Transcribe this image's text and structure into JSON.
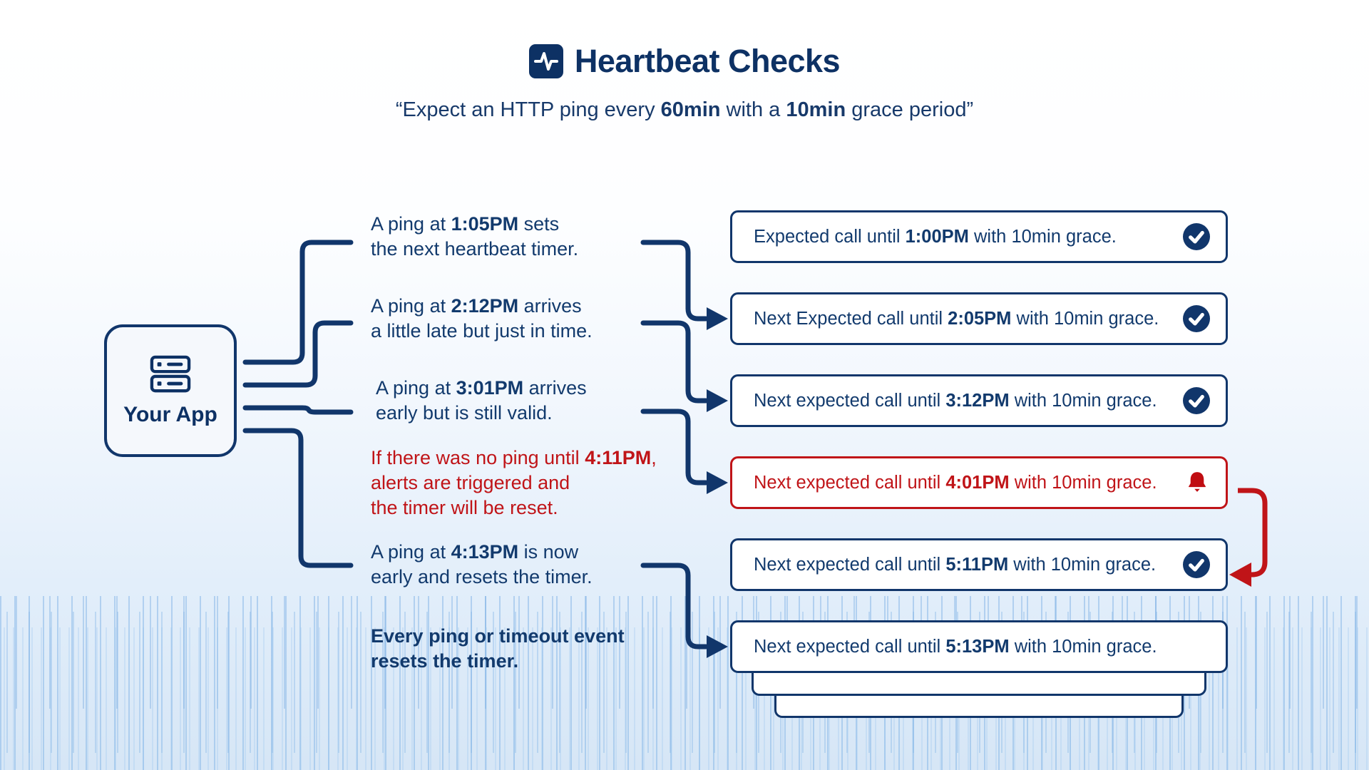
{
  "header": {
    "icon": "pulse-icon",
    "title": "Heartbeat Checks",
    "subtitle_segments": [
      {
        "t": "“Expect an HTTP ping every "
      },
      {
        "t": "60min",
        "b": true
      },
      {
        "t": " with a "
      },
      {
        "t": "10min",
        "b": true
      },
      {
        "t": " grace period”"
      }
    ]
  },
  "app_node": {
    "icon": "server-icon",
    "label": "Your App"
  },
  "left_notes": [
    {
      "style": "normal",
      "segments": [
        {
          "t": "A ping at "
        },
        {
          "t": "1:05PM",
          "b": true
        },
        {
          "t": " sets"
        },
        {
          "br": true
        },
        {
          "t": "the next heartbeat timer."
        }
      ]
    },
    {
      "style": "normal",
      "segments": [
        {
          "t": "A ping at "
        },
        {
          "t": "2:12PM",
          "b": true
        },
        {
          "t": " arrives"
        },
        {
          "br": true
        },
        {
          "t": "a little late but just in time."
        }
      ]
    },
    {
      "style": "normal",
      "segments": [
        {
          "t": "A ping at "
        },
        {
          "t": "3:01PM",
          "b": true
        },
        {
          "t": " arrives"
        },
        {
          "br": true
        },
        {
          "t": "early but is still valid."
        }
      ]
    },
    {
      "style": "alert",
      "segments": [
        {
          "t": "If there was no ping until "
        },
        {
          "t": "4:11PM",
          "b": true
        },
        {
          "t": ","
        },
        {
          "br": true
        },
        {
          "t": "alerts are triggered and"
        },
        {
          "br": true
        },
        {
          "t": "the timer will be reset."
        }
      ]
    },
    {
      "style": "normal",
      "segments": [
        {
          "t": "A ping at "
        },
        {
          "t": "4:13PM",
          "b": true
        },
        {
          "t": " is now"
        },
        {
          "br": true
        },
        {
          "t": "early and resets the timer."
        }
      ]
    },
    {
      "style": "emphasis",
      "segments": [
        {
          "t": "Every ping or timeout event",
          "b": true
        },
        {
          "br": true
        },
        {
          "t": "resets the timer.",
          "b": true
        }
      ]
    }
  ],
  "status_boxes": [
    {
      "state": "ok",
      "icon": "check-circle-icon",
      "segments": [
        {
          "t": "Expected call until "
        },
        {
          "t": "1:00PM",
          "b": true
        },
        {
          "t": " with 10min grace."
        }
      ]
    },
    {
      "state": "ok",
      "icon": "check-circle-icon",
      "segments": [
        {
          "t": "Next Expected call until "
        },
        {
          "t": "2:05PM",
          "b": true
        },
        {
          "t": " with 10min grace."
        }
      ]
    },
    {
      "state": "ok",
      "icon": "check-circle-icon",
      "segments": [
        {
          "t": "Next expected call until "
        },
        {
          "t": "3:12PM",
          "b": true
        },
        {
          "t": " with 10min grace."
        }
      ]
    },
    {
      "state": "alert",
      "icon": "bell-icon",
      "segments": [
        {
          "t": "Next expected call until "
        },
        {
          "t": "4:01PM",
          "b": true
        },
        {
          "t": " with 10min grace."
        }
      ]
    },
    {
      "state": "ok",
      "icon": "check-circle-icon",
      "segments": [
        {
          "t": "Next expected call until "
        },
        {
          "t": "5:11PM",
          "b": true
        },
        {
          "t": " with 10min grace."
        }
      ]
    },
    {
      "state": "pending",
      "icon": null,
      "segments": [
        {
          "t": "Next expected call until "
        },
        {
          "t": "5:13PM",
          "b": true
        },
        {
          "t": " with 10min grace."
        }
      ]
    }
  ],
  "colors": {
    "navy": "#11366b",
    "navy_text": "#123a6d",
    "title": "#0d3164",
    "red": "#c01418",
    "box_bg": "#ffffff",
    "app_bg": "#f5f8fc"
  }
}
